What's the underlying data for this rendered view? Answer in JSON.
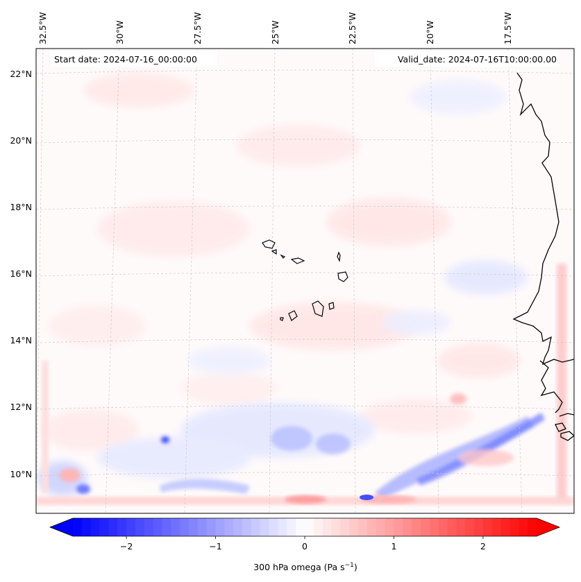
{
  "map": {
    "start_date": "Start date: 2024-07-16_00:00:00",
    "valid_date": "Valid_date: 2024-07-16T10:00:00.00",
    "lon_labels": [
      "32.5°W",
      "30°W",
      "27.5°W",
      "25°W",
      "22.5°W",
      "20°W",
      "17.5°W"
    ],
    "lat_labels": [
      "22°N",
      "20°N",
      "18°N",
      "16°N",
      "14°N",
      "12°N",
      "10°N"
    ],
    "coastline_color": "#000000",
    "gridline_color": "#c8c8c8"
  },
  "colorbar": {
    "title": "300 hPa omega (Pa s",
    "title_sup": "−1",
    "title_end": ")",
    "ticks": [
      "−2",
      "−1",
      "0",
      "1",
      "2"
    ],
    "tick_values": [
      -2,
      -1,
      0,
      1,
      2
    ],
    "range": [
      -2.6,
      2.6
    ],
    "low_color": "#0000ff",
    "mid_color": "#ffffff",
    "high_color": "#ff0000",
    "extend": "both"
  }
}
